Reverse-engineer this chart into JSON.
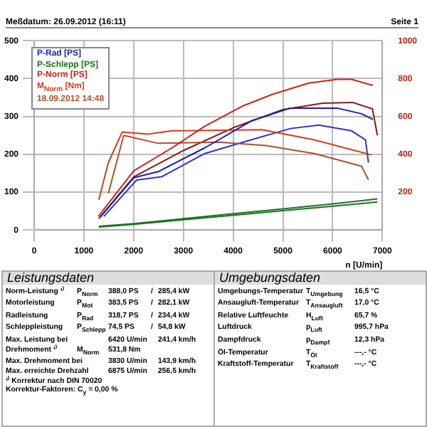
{
  "chart_data": {
    "type": "line",
    "title": "Meßdatum: 26.09.2012 (16:11)",
    "xlabel": "n [U/min]",
    "xlim": [
      0,
      7000
    ],
    "xticks": [
      0,
      1000,
      2000,
      3000,
      4000,
      5000,
      6000,
      7000
    ],
    "ylim": [
      0,
      500
    ],
    "yticks": [
      0,
      100,
      200,
      300,
      400,
      500
    ],
    "y2lim": [
      0,
      1000
    ],
    "y2ticks": [
      200,
      400,
      600,
      800,
      1000
    ],
    "grid": true,
    "legend": "top left",
    "marker": "none",
    "line_style": "solid",
    "series": [
      {
        "name": "P-Rad [PS]",
        "color": "#1c1ca8",
        "x": [
          1340,
          2000,
          2490,
          3430,
          4380,
          5150,
          6090,
          6580,
          6810
        ],
        "values": [
          36,
          138,
          154,
          217,
          289,
          322,
          322,
          307,
          292
        ]
      },
      {
        "name": "P-Schlepp [PS]",
        "color": "#127a12",
        "x": [
          1300,
          2000,
          3000,
          4000,
          5000,
          6000,
          6900
        ],
        "values": [
          8,
          15,
          27,
          39,
          51,
          63,
          74
        ]
      },
      {
        "name": "P-Norm [PS]",
        "color": "#d0201a",
        "x": [
          1290,
          2000,
          2770,
          3430,
          4200,
          4780,
          5520,
          6090,
          6380,
          6810
        ],
        "values": [
          36,
          156,
          217,
          274,
          328,
          358,
          388,
          398,
          398,
          382
        ]
      },
      {
        "name": "M$_{Norm}$ [Nm]",
        "color": "#d0401a",
        "axis": "y2",
        "x": [
          1300,
          1490,
          1770,
          2290,
          2770,
          4580,
          5630,
          6780
        ],
        "values": [
          160,
          355,
          518,
          506,
          524,
          530,
          476,
          397
        ]
      },
      {
        "name": "18.09.2012 14:48",
        "color": "#b05030",
        "axis": "y2",
        "x": [
          1490,
          1800,
          2490,
          3720,
          4660,
          5630,
          6580,
          6720
        ],
        "values": [
          193,
          500,
          458,
          464,
          446,
          404,
          337,
          265
        ]
      },
      {
        "color": "#8a1a1a",
        "x": [
          1300,
          2000,
          3000,
          4000,
          5000,
          5800,
          6400,
          6800,
          6900
        ],
        "values": [
          30,
          140,
          210,
          270,
          318,
          335,
          337,
          320,
          250
        ]
      },
      {
        "color": "#3030d0",
        "x": [
          1400,
          2060,
          2570,
          3430,
          4200,
          5150,
          5720,
          6380,
          6660,
          6720
        ],
        "values": [
          36,
          132,
          141,
          202,
          232,
          268,
          277,
          262,
          238,
          178
        ]
      },
      {
        "color": "#2a6a2a",
        "x": [
          1300,
          2000,
          3000,
          4000,
          5000,
          6000,
          6900
        ],
        "values": [
          10,
          17,
          30,
          43,
          56,
          69,
          82
        ]
      }
    ],
    "annotations": [
      "Seite 1",
      "Leistungsdaten",
      "Norm-Leistung ¹⁾\tP$_{Norm}$\t388,0 PS\t/\t285,4 kW",
      "Motorleistung\tP$_{Mot}$\t383,5 PS\t/\t282,1 kW",
      "Radleistung\tP$_{Rad}$\t318,7 PS\t/\t234,4 kW",
      "Schleppleistung\tP$_{Schlepp}$\t74,5 PS\t/\t54,8 kW",
      "Max. Leistung bei\t\t6420 U/min\t\t241,4 km/h",
      "Drehmoment ¹⁾\tM$_{Norm}$\t531,8 Nm",
      "Max. Drehmoment bei\t\t3830 U/min\t\t143,9 km/h",
      "Max. erreichte Drehzahl\t\t6875 U/min\t\t256,5 km/h",
      "¹⁾ Korrektur nach DIN 70020",
      "Korrektur-Faktoren: C$_{y}$ = 0,00 %",
      "Umgebungsdaten",
      "Umgebungs-Temperatur\tT$_{Umgebung}$\t16,5 °C",
      "Ansaugluft-Temperatur\tT$_{Ansaugluft}$\t17,0 °C",
      "Relative Luftfeuchte\tH$_{Luft}$\t65,7 %",
      "Luftdruck\tp$_{Luft}$\t995,7 hPa",
      "Dampfdruck\tp$_{Dampf}$\t12,3 hPa",
      "Öl-Temperatur\tT$_{Öl}$\t---,- °C",
      "Kraftstoff-Temperatur\tT$_{Kraftstoff}$\t---,- °C"
    ]
  }
}
